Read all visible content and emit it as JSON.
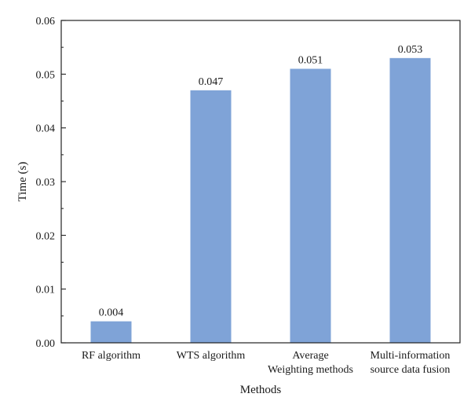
{
  "chart_data": {
    "type": "bar",
    "categories": [
      [
        "RF algorithm"
      ],
      [
        "WTS algorithm"
      ],
      [
        "Average",
        "Weighting methods"
      ],
      [
        "Multi-information",
        "source data fusion"
      ]
    ],
    "values": [
      0.004,
      0.047,
      0.051,
      0.053
    ],
    "data_labels": [
      "0.004",
      "0.047",
      "0.051",
      "0.053"
    ],
    "title": "",
    "xlabel": "Methods",
    "ylabel": "Time (s)",
    "ylim": [
      0,
      0.06
    ],
    "yticks": [
      0,
      0.01,
      0.02,
      0.03,
      0.04,
      0.05,
      0.06
    ],
    "ytick_labels": [
      "0.00",
      "0.01",
      "0.02",
      "0.03",
      "0.04",
      "0.05",
      "0.06"
    ],
    "grid": false,
    "bar_color": "#7fa3d7"
  }
}
